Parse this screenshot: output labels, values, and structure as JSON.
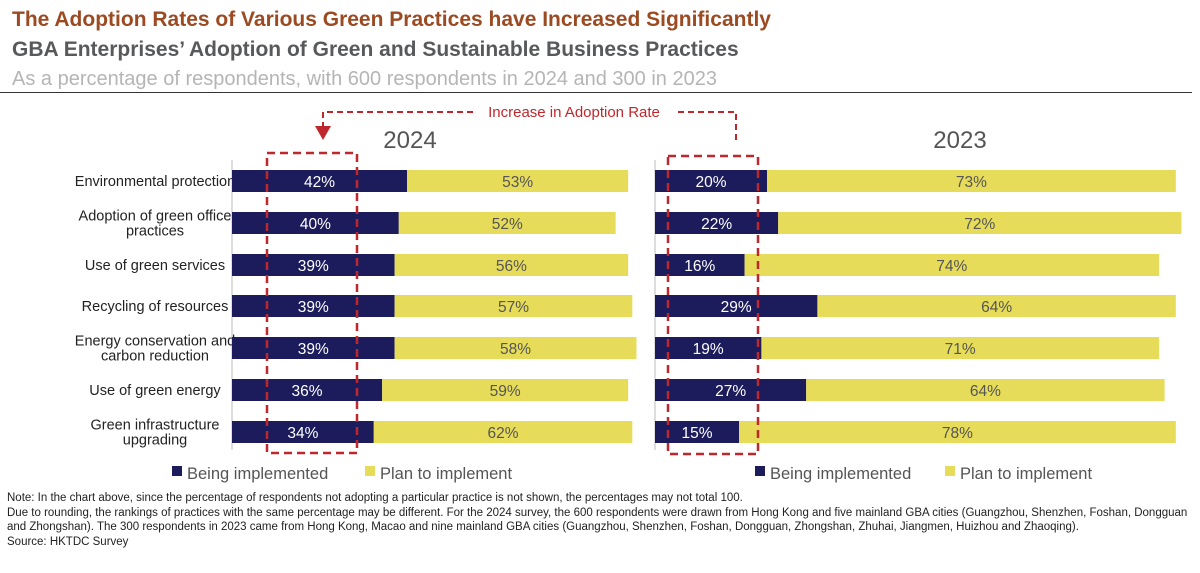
{
  "title": "The Adoption Rates of Various Green Practices have Increased Significantly",
  "subtitle": "GBA Enterprises’ Adoption of Green and Sustainable Business Practices",
  "subsubtitle": "As a percentage of respondents, with 600 respondents in 2024 and 300 in 2023",
  "annotation": "Increase in Adoption Rate",
  "colors": {
    "being": "#1c1c5c",
    "plan": "#e6dc5a",
    "annotation": "#c0272d"
  },
  "chart_data": [
    {
      "type": "bar",
      "orientation": "horizontal",
      "stacked": true,
      "title": "2024",
      "categories": [
        "Environmental protection",
        "Adoption of green office practices",
        "Use of green services",
        "Recycling of resources",
        "Energy conservation and carbon reduction",
        "Use of green energy",
        "Green infrastructure upgrading"
      ],
      "series": [
        {
          "name": "Being implemented",
          "values": [
            42,
            40,
            39,
            39,
            39,
            36,
            34
          ]
        },
        {
          "name": "Plan to implement",
          "values": [
            53,
            52,
            56,
            57,
            58,
            59,
            62
          ]
        }
      ],
      "legend": "bottom"
    },
    {
      "type": "bar",
      "orientation": "horizontal",
      "stacked": true,
      "title": "2023",
      "categories": [
        "Environmental protection",
        "Adoption of green office practices",
        "Use of green services",
        "Recycling of resources",
        "Energy conservation and carbon reduction",
        "Use of green energy",
        "Green infrastructure upgrading"
      ],
      "series": [
        {
          "name": "Being implemented",
          "values": [
            20,
            22,
            16,
            29,
            19,
            27,
            15
          ]
        },
        {
          "name": "Plan to implement",
          "values": [
            73,
            72,
            74,
            64,
            71,
            64,
            78
          ]
        }
      ],
      "legend": "bottom"
    }
  ],
  "notes": [
    "Note: In the chart above, since the percentage of respondents not adopting a particular practice is not shown, the percentages may not total 100.",
    "Due to rounding, the rankings of practices with the same percentage may be different. For the 2024 survey, the 600 respondents were drawn from Hong Kong and five mainland GBA cities (Guangzhou, Shenzhen, Foshan, Dongguan and Zhongshan). The 300 respondents in 2023 came from Hong Kong, Macao and nine mainland GBA cities (Guangzhou, Shenzhen, Foshan, Dongguan, Zhongshan, Zhuhai, Jiangmen, Huizhou and Zhaoqing).",
    "Source: HKTDC Survey"
  ]
}
